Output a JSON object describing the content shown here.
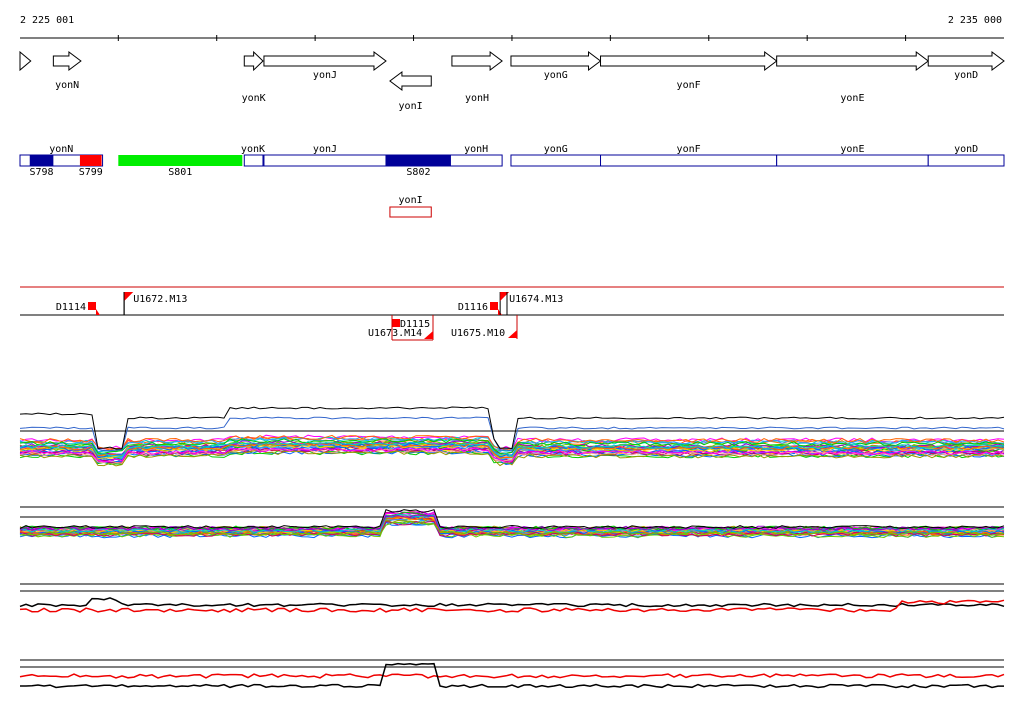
{
  "axis": {
    "start_label": "2 225 001",
    "end_label": "2 235 000",
    "start": 2225001,
    "end": 2235000
  },
  "genes": [
    {
      "id": "g0",
      "label": "",
      "start": 2225001,
      "end": 2225110,
      "strand": "+"
    },
    {
      "id": "yonN",
      "label": "yonN",
      "start": 2225340,
      "end": 2225620,
      "strand": "+"
    },
    {
      "id": "yonK",
      "label": "yonK",
      "start": 2227280,
      "end": 2227470,
      "strand": "+"
    },
    {
      "id": "yonJ",
      "label": "yonJ",
      "start": 2227480,
      "end": 2228720,
      "strand": "+"
    },
    {
      "id": "yonI",
      "label": "yonI",
      "start": 2228760,
      "end": 2229180,
      "strand": "-"
    },
    {
      "id": "yonH",
      "label": "yonH",
      "start": 2229390,
      "end": 2229900,
      "strand": "+"
    },
    {
      "id": "yonG",
      "label": "yonG",
      "start": 2229990,
      "end": 2230900,
      "strand": "+"
    },
    {
      "id": "yonF",
      "label": "yonF",
      "start": 2230900,
      "end": 2232690,
      "strand": "+"
    },
    {
      "id": "yonE",
      "label": "yonE",
      "start": 2232690,
      "end": 2234230,
      "strand": "+"
    },
    {
      "id": "yonD",
      "label": "yonD",
      "start": 2234230,
      "end": 2235000,
      "strand": "+"
    }
  ],
  "segments_forward": [
    {
      "id": "yonN",
      "label": "yonN",
      "start": 2225001,
      "end": 2225840
    },
    {
      "id": "yonK",
      "label": "yonK",
      "start": 2227280,
      "end": 2227470
    },
    {
      "id": "yonJ",
      "label": "yonJ",
      "start": 2227480,
      "end": 2228720
    },
    {
      "id": "yonH",
      "label": "yonH",
      "start": 2228720,
      "end": 2229900
    },
    {
      "id": "yonG",
      "label": "yonG",
      "start": 2229990,
      "end": 2230900
    },
    {
      "id": "yonF",
      "label": "yonF",
      "start": 2230900,
      "end": 2232690
    },
    {
      "id": "yonE",
      "label": "yonE",
      "start": 2232690,
      "end": 2234230
    },
    {
      "id": "yonD",
      "label": "yonD",
      "start": 2234230,
      "end": 2235000
    }
  ],
  "segments_reverse": [
    {
      "id": "yonI",
      "label": "yonI",
      "start": 2228760,
      "end": 2229180
    }
  ],
  "regions": [
    {
      "id": "S798",
      "label": "S798",
      "start": 2225100,
      "end": 2225340,
      "color": "#000099"
    },
    {
      "id": "S799",
      "label": "S799",
      "start": 2225610,
      "end": 2225830,
      "color": "#ff0000"
    },
    {
      "id": "S801",
      "label": "S801",
      "start": 2226000,
      "end": 2227260,
      "color": "#00ee00"
    },
    {
      "id": "S802",
      "label": "S802",
      "start": 2228720,
      "end": 2229380,
      "color": "#000099"
    }
  ],
  "transcripts_upper": [
    {
      "id": "D1114",
      "label": "D1114",
      "start": 2225001,
      "end": 2225800,
      "kind": "down"
    },
    {
      "id": "U1672.M13",
      "label": "U1672.M13",
      "start": 2226060,
      "end": 2229870,
      "kind": "up"
    },
    {
      "id": "D1116",
      "label": "D1116",
      "start": 2228850,
      "end": 2229850,
      "kind": "down"
    },
    {
      "id": "U1674.M13",
      "label": "U1674.M13",
      "start": 2229880,
      "end": 2235000,
      "kind": "up"
    }
  ],
  "transcripts_lower": [
    {
      "id": "D1115",
      "label": "D1115",
      "start": 2228770,
      "end": 2228870,
      "kind": "down"
    },
    {
      "id": "U1673.M14",
      "label": "U1673.M14",
      "start": 2228770,
      "end": 2229200,
      "kind": "up"
    },
    {
      "id": "U1675.M10",
      "label": "U1675.M10",
      "start": 2229880,
      "end": 2230060,
      "kind": "up"
    }
  ],
  "colors": {
    "axis": "#000000",
    "gene_outline": "#000000",
    "segment_outline": "#000099",
    "reverse_outline": "#cc0000",
    "transcript_line": "#cc0000",
    "marker": "#ff0000"
  }
}
